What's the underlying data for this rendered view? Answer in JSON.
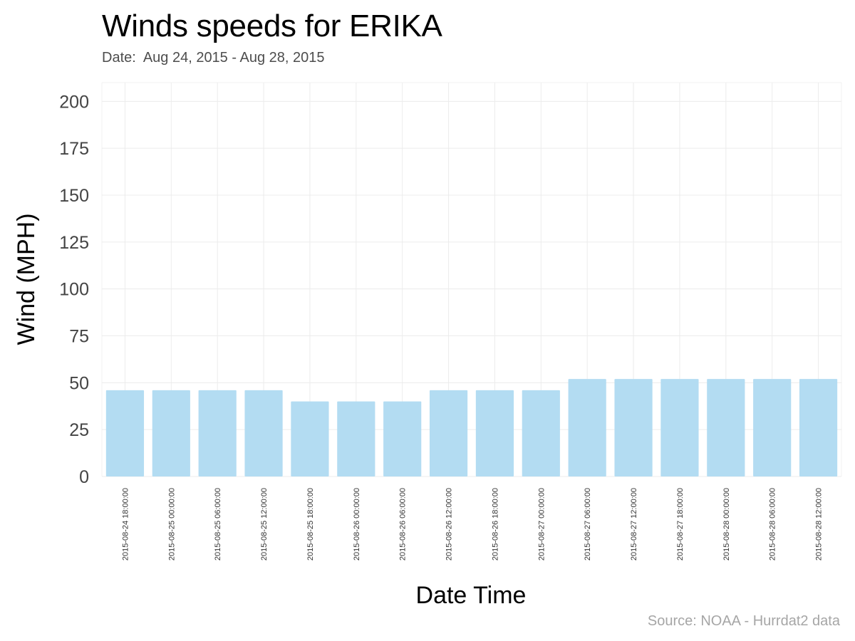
{
  "chart_data": {
    "type": "bar",
    "title": "Winds speeds for ERIKA",
    "subtitle": "Date:  Aug 24, 2015 - Aug 28, 2015",
    "caption": "Source: NOAA - Hurrdat2 data",
    "xlabel": "Date Time",
    "ylabel": "Wind (MPH)",
    "ylim": [
      0,
      210
    ],
    "yticks": [
      0,
      25,
      50,
      75,
      100,
      125,
      150,
      175,
      200
    ],
    "grid": true,
    "bar_color": "#b3dcf2",
    "categories": [
      "2015-08-24 18:00:00",
      "2015-08-25 00:00:00",
      "2015-08-25 06:00:00",
      "2015-08-25 12:00:00",
      "2015-08-25 18:00:00",
      "2015-08-26 00:00:00",
      "2015-08-26 06:00:00",
      "2015-08-26 12:00:00",
      "2015-08-26 18:00:00",
      "2015-08-27 00:00:00",
      "2015-08-27 06:00:00",
      "2015-08-27 12:00:00",
      "2015-08-27 18:00:00",
      "2015-08-28 00:00:00",
      "2015-08-28 06:00:00",
      "2015-08-28 12:00:00"
    ],
    "values": [
      46,
      46,
      46,
      46,
      40,
      40,
      40,
      46,
      46,
      46,
      52,
      52,
      52,
      52,
      52,
      52
    ]
  }
}
